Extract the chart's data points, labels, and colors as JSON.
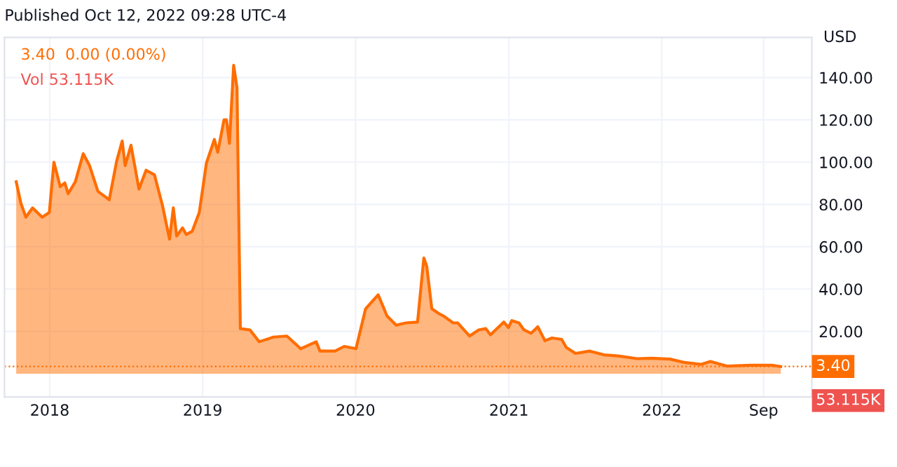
{
  "chart_data": {
    "type": "area",
    "title": "Published Oct 12, 2022 09:28 UTC-4",
    "ylabel": "USD",
    "x": [
      "2017-10-13",
      "2017-10-24",
      "2017-11-05",
      "2017-11-21",
      "2017-12-14",
      "2017-12-31",
      "2018-01-11",
      "2018-01-26",
      "2018-02-06",
      "2018-02-14",
      "2018-03-03",
      "2018-03-22",
      "2018-04-06",
      "2018-04-26",
      "2018-05-23",
      "2018-06-10",
      "2018-06-23",
      "2018-06-30",
      "2018-07-14",
      "2018-08-02",
      "2018-08-19",
      "2018-09-08",
      "2018-09-27",
      "2018-10-14",
      "2018-10-23",
      "2018-10-31",
      "2018-11-14",
      "2018-11-23",
      "2018-12-07",
      "2018-12-24",
      "2019-01-10",
      "2019-01-29",
      "2019-02-06",
      "2019-02-21",
      "2019-02-27",
      "2019-03-06",
      "2019-03-16",
      "2019-03-24",
      "2019-04-01",
      "2019-04-24",
      "2019-05-16",
      "2019-06-19",
      "2019-07-21",
      "2019-08-23",
      "2019-09-29",
      "2019-10-08",
      "2019-11-13",
      "2019-12-05",
      "2020-01-02",
      "2020-01-25",
      "2020-02-09",
      "2020-02-24",
      "2020-03-16",
      "2020-04-07",
      "2020-04-30",
      "2020-05-28",
      "2020-06-12",
      "2020-06-19",
      "2020-07-01",
      "2020-07-18",
      "2020-07-29",
      "2020-08-21",
      "2020-09-01",
      "2020-09-29",
      "2020-10-21",
      "2020-11-07",
      "2020-11-18",
      "2020-12-20",
      "2020-12-31",
      "2021-01-08",
      "2021-01-25",
      "2021-02-06",
      "2021-02-23",
      "2021-03-11",
      "2021-03-28",
      "2021-04-14",
      "2021-05-07",
      "2021-05-18",
      "2021-06-09",
      "2021-07-13",
      "2021-08-16",
      "2021-09-19",
      "2021-11-03",
      "2021-12-07",
      "2022-01-21",
      "2022-02-24",
      "2022-04-04",
      "2022-04-27",
      "2022-06-05",
      "2022-08-01",
      "2022-09-20",
      "2022-10-12"
    ],
    "series": [
      {
        "color": "#ff6d00",
        "values": [
          90.7,
          80.7,
          74,
          78.4,
          74,
          76.2,
          100,
          88.4,
          90.2,
          85.1,
          90.7,
          104,
          98.4,
          86.2,
          82.2,
          100.7,
          110,
          98.4,
          108,
          87.3,
          96.2,
          94,
          79.6,
          63.6,
          78.4,
          65.1,
          68.9,
          65.8,
          67.3,
          76.2,
          99.6,
          110.7,
          104.7,
          120,
          120,
          108.9,
          145.8,
          135.1,
          21.3,
          20.7,
          15.1,
          17.3,
          17.8,
          11.8,
          15.1,
          10.7,
          10.7,
          12.9,
          11.8,
          30.7,
          34,
          37.3,
          27.3,
          22.9,
          24,
          24.4,
          54.7,
          50.7,
          30.7,
          28.4,
          27.3,
          24,
          24,
          17.8,
          20.7,
          21.3,
          18.4,
          24.4,
          21.8,
          25.1,
          24,
          20.7,
          19.1,
          22.2,
          15.6,
          16.9,
          16.2,
          12.4,
          9.6,
          10.7,
          8.9,
          8.4,
          7.1,
          7.3,
          6.9,
          5.3,
          4.4,
          5.8,
          3.6,
          4,
          4,
          3.4
        ]
      }
    ],
    "xlim": [
      "2017-09-15",
      "2022-12-25"
    ],
    "xticks": [
      {
        "value": "2018-01-01",
        "label": "2018"
      },
      {
        "value": "2019-01-01",
        "label": "2019"
      },
      {
        "value": "2020-01-01",
        "label": "2020"
      },
      {
        "value": "2021-01-01",
        "label": "2021"
      },
      {
        "value": "2022-01-01",
        "label": "2022"
      },
      {
        "value": "2022-09-01",
        "label": "Sep"
      }
    ],
    "ylim": [
      -11,
      159
    ],
    "yticks": [
      {
        "value": 20,
        "label": "20.00"
      },
      {
        "value": 40,
        "label": "40.00"
      },
      {
        "value": 60,
        "label": "60.00"
      },
      {
        "value": 80,
        "label": "80.00"
      },
      {
        "value": 100,
        "label": "100.00"
      },
      {
        "value": 120,
        "label": "120.00"
      },
      {
        "value": 140,
        "label": "140.00"
      }
    ],
    "ref_lines": [
      {
        "axis": "y",
        "value": 3.4,
        "label": "3.40",
        "color": "#ff6d00",
        "line_style": "dotted"
      }
    ],
    "annotations": [
      "3.40  0.00 (0.00%)",
      "Vol 53.115K",
      "53.115K"
    ],
    "grid": true
  }
}
